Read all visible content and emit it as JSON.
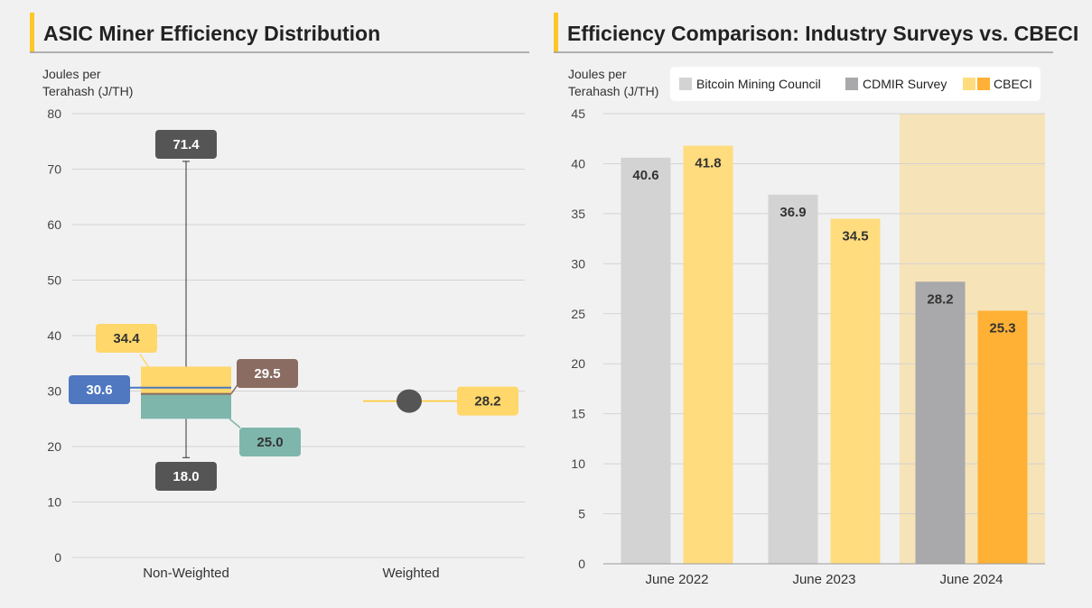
{
  "colors": {
    "accent": "#ffc629",
    "tick": "#444444",
    "grid": "#d3d3d3",
    "label_dark": "#555555",
    "box_yellow": "#ffd76a",
    "box_teal": "#7fb6ac",
    "box_blue": "#4f78c0",
    "box_brown": "#8a6c62",
    "bmc": "#d3d3d3",
    "cdmir": "#a9a8aa",
    "cbeci": "#ffdc7e",
    "cbeci_strong": "#ffb135",
    "highlight": "#f6e3b7"
  },
  "chart_data": [
    {
      "type": "box",
      "title": "ASIC Miner Efficiency Distribution",
      "ylabel_lines": [
        "Joules per",
        "Terahash (J/TH)"
      ],
      "ylim": [
        0,
        80
      ],
      "yticks": [
        0,
        10,
        20,
        30,
        40,
        50,
        60,
        70,
        80
      ],
      "categories": [
        "Non-Weighted",
        "Weighted"
      ],
      "non_weighted": {
        "max": 71.4,
        "q3": 34.4,
        "mean": 30.6,
        "median": 29.5,
        "q1": 25.0,
        "min": 18.0,
        "labels": [
          "71.4",
          "34.4",
          "30.6",
          "29.5",
          "25.0",
          "18.0"
        ]
      },
      "weighted": {
        "value": 28.2,
        "label": "28.2"
      },
      "grid": true
    },
    {
      "type": "bar",
      "title": "Efficiency Comparison: Industry Surveys vs. CBECI",
      "ylabel_lines": [
        "Joules per",
        "Terahash (J/TH)"
      ],
      "ylim": [
        0,
        45
      ],
      "yticks": [
        0,
        5,
        10,
        15,
        20,
        25,
        30,
        35,
        40,
        45
      ],
      "categories": [
        "June 2022",
        "June 2023",
        "June 2024"
      ],
      "legend": [
        "Bitcoin Mining Council",
        "CDMIR Survey",
        "CBECI"
      ],
      "legend_placement": "top",
      "highlighted_category": "June 2024",
      "bars": [
        {
          "category": "June 2022",
          "series": "Bitcoin Mining Council",
          "value": 40.6,
          "label": "40.6"
        },
        {
          "category": "June 2022",
          "series": "CBECI",
          "value": 41.8,
          "label": "41.8"
        },
        {
          "category": "June 2023",
          "series": "Bitcoin Mining Council",
          "value": 36.9,
          "label": "36.9"
        },
        {
          "category": "June 2023",
          "series": "CBECI",
          "value": 34.5,
          "label": "34.5"
        },
        {
          "category": "June 2024",
          "series": "CDMIR Survey",
          "value": 28.2,
          "label": "28.2"
        },
        {
          "category": "June 2024",
          "series": "CBECI",
          "value": 25.3,
          "label": "25.3"
        }
      ],
      "grid": true
    }
  ]
}
